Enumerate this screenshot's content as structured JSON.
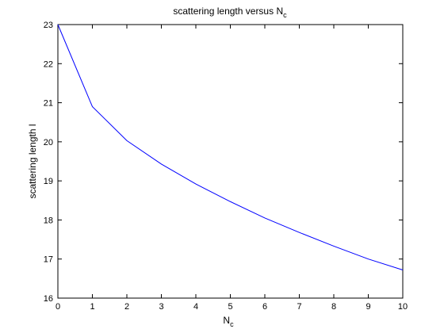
{
  "chart_data": {
    "type": "line",
    "title_main": "scattering length versus N",
    "title_sub": "c",
    "xlabel_main": "N",
    "xlabel_sub": "c",
    "ylabel": "scattering length l",
    "xlim": [
      0,
      10
    ],
    "ylim": [
      16,
      23
    ],
    "x_ticks": [
      0,
      1,
      2,
      3,
      4,
      5,
      6,
      7,
      8,
      9,
      10
    ],
    "y_ticks": [
      16,
      17,
      18,
      19,
      20,
      21,
      22,
      23
    ],
    "grid": false,
    "series": [
      {
        "x": [
          0,
          1,
          2,
          3,
          4,
          5,
          6,
          7,
          8,
          9,
          10
        ],
        "y": [
          23.0,
          20.9,
          20.03,
          19.43,
          18.92,
          18.47,
          18.05,
          17.68,
          17.33,
          17.0,
          16.72
        ]
      }
    ],
    "colors": {
      "line": "#0000ff",
      "axes": "#000000",
      "background": "#ffffff"
    }
  }
}
